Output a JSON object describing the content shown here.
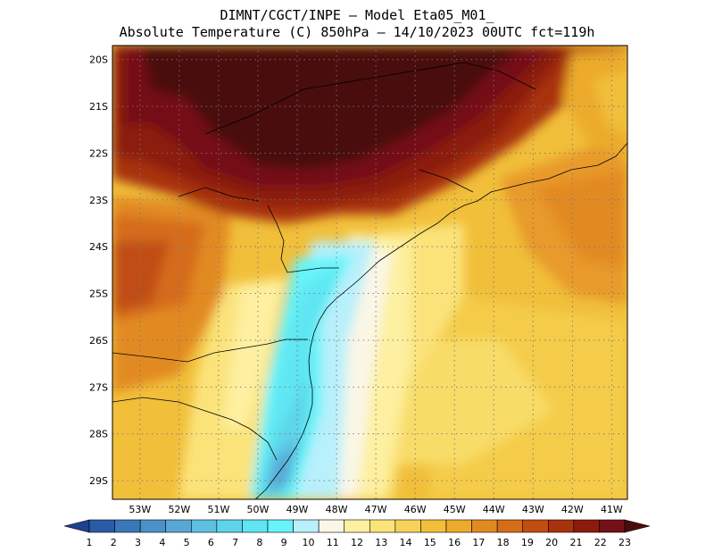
{
  "header": {
    "line1": "DIMNT/CGCT/INPE –  Model Eta05_M01_",
    "line2": "Absolute Temperature (C) 850hPa –  14/10/2023 00UTC fct=119h"
  },
  "map": {
    "lon_range": [
      -53.7,
      -40.6
    ],
    "lat_range": [
      -29.4,
      -19.7
    ],
    "lat_labels": [
      "20S",
      "21S",
      "22S",
      "23S",
      "24S",
      "25S",
      "26S",
      "27S",
      "28S",
      "29S"
    ],
    "lat_values": [
      -20,
      -21,
      -22,
      -23,
      -24,
      -25,
      -26,
      -27,
      -28,
      -29
    ],
    "lon_labels": [
      "53W",
      "52W",
      "51W",
      "50W",
      "49W",
      "48W",
      "47W",
      "46W",
      "45W",
      "44W",
      "43W",
      "42W",
      "41W"
    ],
    "lon_values": [
      -53,
      -52,
      -51,
      -50,
      -49,
      -48,
      -47,
      -46,
      -45,
      -44,
      -43,
      -42,
      -41
    ],
    "grid": "dotted",
    "field": "temperature",
    "units": "C"
  },
  "colorbar": {
    "labels": [
      "1",
      "2",
      "3",
      "4",
      "5",
      "6",
      "7",
      "8",
      "9",
      "10",
      "11",
      "12",
      "13",
      "14",
      "15",
      "16",
      "17",
      "18",
      "19",
      "20",
      "21",
      "22",
      "23"
    ],
    "colors": [
      "#1f3f8f",
      "#2a5ba8",
      "#3a78bb",
      "#4a91c8",
      "#58a8d6",
      "#5ebfe0",
      "#5dd4ea",
      "#5fe6f2",
      "#66f4fa",
      "#b8f0fb",
      "#fbf6e6",
      "#fdf0a0",
      "#fbe37a",
      "#f6d259",
      "#f1bf3a",
      "#ecab2c",
      "#e28a22",
      "#d56c1a",
      "#c14d12",
      "#a8320e",
      "#8c1b0c",
      "#741017",
      "#4a0c0c"
    ]
  }
}
